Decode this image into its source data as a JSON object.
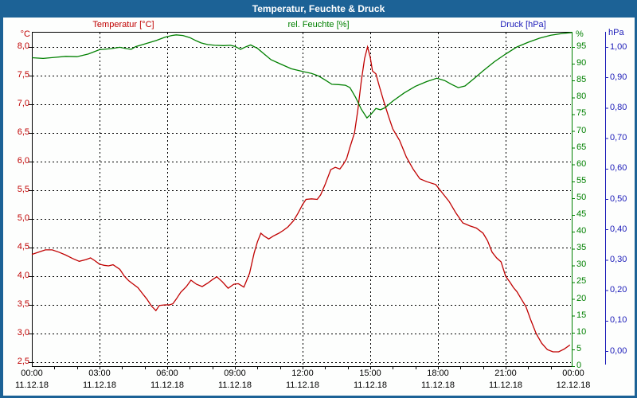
{
  "window": {
    "title": "Temperatur, Feuchte & Druck"
  },
  "legend": {
    "temperature": "Temperatur [°C]",
    "humidity": "rel. Feuchte [%]",
    "pressure": "Druck [hPa]"
  },
  "colors": {
    "titlebar": "#1c6296",
    "temperature": "#c00000",
    "humidity": "#008000",
    "pressure": "#1a1ab8",
    "grid": "#000000",
    "background": "#fdfefd"
  },
  "axes": {
    "temperature": {
      "unit": "°C",
      "ticks": [
        "8,0",
        "7,5",
        "7,0",
        "6,5",
        "6,0",
        "5,5",
        "5,0",
        "4,5",
        "4,0",
        "3,5",
        "3,0",
        "2,5"
      ]
    },
    "humidity": {
      "unit": "%",
      "ticks": [
        "95",
        "90",
        "85",
        "80",
        "75",
        "70",
        "65",
        "60",
        "55",
        "50",
        "45",
        "40",
        "35",
        "30",
        "25",
        "20",
        "15",
        "10",
        "5",
        "0"
      ]
    },
    "pressure": {
      "unit": "hPa",
      "ticks": [
        "1,00",
        "0,90",
        "0,80",
        "0,70",
        "0,60",
        "0,50",
        "0,40",
        "0,30",
        "0,20",
        "0,10",
        "0,00"
      ]
    },
    "time": {
      "times": [
        "00:00",
        "03:00",
        "06:00",
        "09:00",
        "12:00",
        "15:00",
        "18:00",
        "21:00",
        "00:00"
      ],
      "dates": [
        "11.12.18",
        "11.12.18",
        "11.12.18",
        "11.12.18",
        "11.12.18",
        "11.12.18",
        "11.12.18",
        "11.12.18",
        "12.12.18"
      ]
    }
  },
  "chart_data": {
    "type": "line",
    "title": "Temperatur, Feuchte & Druck",
    "x_axis": {
      "unit": "hours",
      "range": [
        0,
        24
      ],
      "major_tick_step_hours": 3,
      "minor_tick_step_hours": 1,
      "start_label": "00:00 11.12.18",
      "end_label": "00:00 12.12.18"
    },
    "y_axes": [
      {
        "id": "temperature",
        "unit": "°C",
        "min": 2.5,
        "max": 8.0,
        "tick_step": 0.5,
        "side": "left"
      },
      {
        "id": "humidity",
        "unit": "%",
        "min": 0,
        "max": 95,
        "tick_step": 5,
        "side": "right-inner"
      },
      {
        "id": "pressure",
        "unit": "hPa",
        "min": 0.0,
        "max": 1.0,
        "tick_step": 0.1,
        "side": "right-outer"
      }
    ],
    "grid": true,
    "legend_position": "top",
    "series": [
      {
        "name": "Temperatur [°C]",
        "axis": "temperature",
        "color": "#c00000",
        "points": [
          [
            0,
            4.38
          ],
          [
            0.3,
            4.42
          ],
          [
            0.6,
            4.46
          ],
          [
            0.9,
            4.46
          ],
          [
            1.2,
            4.42
          ],
          [
            1.5,
            4.37
          ],
          [
            1.8,
            4.31
          ],
          [
            2.1,
            4.26
          ],
          [
            2.4,
            4.29
          ],
          [
            2.6,
            4.32
          ],
          [
            2.8,
            4.27
          ],
          [
            3.0,
            4.21
          ],
          [
            3.2,
            4.19
          ],
          [
            3.4,
            4.18
          ],
          [
            3.6,
            4.2
          ],
          [
            3.9,
            4.12
          ],
          [
            4.1,
            4.0
          ],
          [
            4.3,
            3.92
          ],
          [
            4.5,
            3.86
          ],
          [
            4.7,
            3.8
          ],
          [
            4.9,
            3.7
          ],
          [
            5.1,
            3.6
          ],
          [
            5.3,
            3.48
          ],
          [
            5.5,
            3.4
          ],
          [
            5.65,
            3.49
          ],
          [
            5.9,
            3.5
          ],
          [
            6.1,
            3.5
          ],
          [
            6.25,
            3.52
          ],
          [
            6.4,
            3.6
          ],
          [
            6.6,
            3.72
          ],
          [
            6.85,
            3.82
          ],
          [
            7.05,
            3.93
          ],
          [
            7.3,
            3.86
          ],
          [
            7.55,
            3.82
          ],
          [
            7.8,
            3.88
          ],
          [
            8.0,
            3.94
          ],
          [
            8.2,
            3.99
          ],
          [
            8.45,
            3.9
          ],
          [
            8.7,
            3.79
          ],
          [
            8.95,
            3.86
          ],
          [
            9.15,
            3.87
          ],
          [
            9.4,
            3.81
          ],
          [
            9.65,
            4.05
          ],
          [
            9.85,
            4.4
          ],
          [
            10.0,
            4.6
          ],
          [
            10.15,
            4.75
          ],
          [
            10.3,
            4.7
          ],
          [
            10.5,
            4.65
          ],
          [
            10.7,
            4.7
          ],
          [
            10.95,
            4.75
          ],
          [
            11.15,
            4.8
          ],
          [
            11.35,
            4.86
          ],
          [
            11.6,
            4.97
          ],
          [
            11.8,
            5.1
          ],
          [
            12.0,
            5.25
          ],
          [
            12.15,
            5.34
          ],
          [
            12.4,
            5.35
          ],
          [
            12.65,
            5.34
          ],
          [
            12.8,
            5.42
          ],
          [
            13.0,
            5.6
          ],
          [
            13.25,
            5.86
          ],
          [
            13.45,
            5.9
          ],
          [
            13.65,
            5.87
          ],
          [
            13.8,
            5.95
          ],
          [
            13.95,
            6.05
          ],
          [
            14.1,
            6.25
          ],
          [
            14.3,
            6.5
          ],
          [
            14.45,
            6.9
          ],
          [
            14.6,
            7.4
          ],
          [
            14.75,
            7.8
          ],
          [
            14.88,
            8.0
          ],
          [
            15.0,
            7.82
          ],
          [
            15.1,
            7.58
          ],
          [
            15.25,
            7.53
          ],
          [
            15.4,
            7.32
          ],
          [
            15.6,
            7.05
          ],
          [
            15.8,
            6.8
          ],
          [
            16.0,
            6.57
          ],
          [
            16.3,
            6.37
          ],
          [
            16.6,
            6.08
          ],
          [
            16.9,
            5.87
          ],
          [
            17.2,
            5.7
          ],
          [
            17.5,
            5.65
          ],
          [
            17.9,
            5.6
          ],
          [
            18.2,
            5.45
          ],
          [
            18.5,
            5.3
          ],
          [
            18.8,
            5.1
          ],
          [
            19.1,
            4.93
          ],
          [
            19.4,
            4.88
          ],
          [
            19.7,
            4.84
          ],
          [
            20.0,
            4.75
          ],
          [
            20.2,
            4.62
          ],
          [
            20.4,
            4.42
          ],
          [
            20.6,
            4.32
          ],
          [
            20.8,
            4.25
          ],
          [
            21.0,
            4.0
          ],
          [
            21.2,
            3.89
          ],
          [
            21.35,
            3.8
          ],
          [
            21.5,
            3.73
          ],
          [
            21.7,
            3.6
          ],
          [
            21.9,
            3.47
          ],
          [
            22.1,
            3.25
          ],
          [
            22.35,
            3.0
          ],
          [
            22.6,
            2.83
          ],
          [
            22.85,
            2.72
          ],
          [
            23.1,
            2.68
          ],
          [
            23.35,
            2.68
          ],
          [
            23.6,
            2.73
          ],
          [
            23.85,
            2.8
          ]
        ]
      },
      {
        "name": "rel. Feuchte [%]",
        "axis": "humidity",
        "color": "#008000",
        "points": [
          [
            0,
            91.8
          ],
          [
            0.5,
            91.6
          ],
          [
            1,
            91.9
          ],
          [
            1.5,
            92.2
          ],
          [
            2,
            92.1
          ],
          [
            2.5,
            92.9
          ],
          [
            3,
            94.2
          ],
          [
            3.5,
            94.5
          ],
          [
            3.9,
            94.9
          ],
          [
            4.2,
            94.5
          ],
          [
            4.4,
            94.3
          ],
          [
            4.6,
            95.1
          ],
          [
            5.0,
            95.9
          ],
          [
            5.5,
            96.9
          ],
          [
            5.9,
            97.9
          ],
          [
            6.2,
            98.4
          ],
          [
            6.4,
            98.6
          ],
          [
            6.7,
            98.4
          ],
          [
            7.0,
            97.8
          ],
          [
            7.3,
            96.8
          ],
          [
            7.5,
            96.2
          ],
          [
            7.8,
            95.7
          ],
          [
            8.1,
            95.5
          ],
          [
            8.5,
            95.4
          ],
          [
            8.8,
            95.5
          ],
          [
            9.0,
            95.2
          ],
          [
            9.25,
            94.3
          ],
          [
            9.5,
            95.1
          ],
          [
            9.7,
            95.6
          ],
          [
            10.0,
            94.6
          ],
          [
            10.3,
            92.9
          ],
          [
            10.6,
            91.2
          ],
          [
            11.0,
            90.0
          ],
          [
            11.5,
            88.5
          ],
          [
            12.0,
            87.7
          ],
          [
            12.4,
            87.1
          ],
          [
            12.7,
            86.4
          ],
          [
            13.0,
            85.2
          ],
          [
            13.3,
            83.9
          ],
          [
            13.6,
            83.8
          ],
          [
            13.9,
            83.6
          ],
          [
            14.1,
            82.9
          ],
          [
            14.35,
            80.0
          ],
          [
            14.6,
            76.5
          ],
          [
            14.85,
            73.9
          ],
          [
            15.05,
            75.1
          ],
          [
            15.25,
            76.7
          ],
          [
            15.45,
            76.3
          ],
          [
            15.65,
            76.9
          ],
          [
            16.0,
            78.9
          ],
          [
            16.5,
            81.3
          ],
          [
            17.0,
            83.3
          ],
          [
            17.5,
            84.7
          ],
          [
            17.95,
            85.7
          ],
          [
            18.3,
            85.0
          ],
          [
            18.6,
            83.9
          ],
          [
            18.9,
            82.9
          ],
          [
            19.2,
            83.4
          ],
          [
            19.6,
            85.6
          ],
          [
            20.0,
            87.9
          ],
          [
            20.5,
            90.6
          ],
          [
            21.0,
            92.9
          ],
          [
            21.5,
            95.0
          ],
          [
            22.0,
            96.4
          ],
          [
            22.5,
            97.6
          ],
          [
            23.0,
            98.5
          ],
          [
            23.5,
            99.0
          ],
          [
            23.95,
            99.3
          ]
        ]
      },
      {
        "name": "Druck [hPa]",
        "axis": "pressure",
        "color": "#1a1ab8",
        "points": []
      }
    ]
  }
}
